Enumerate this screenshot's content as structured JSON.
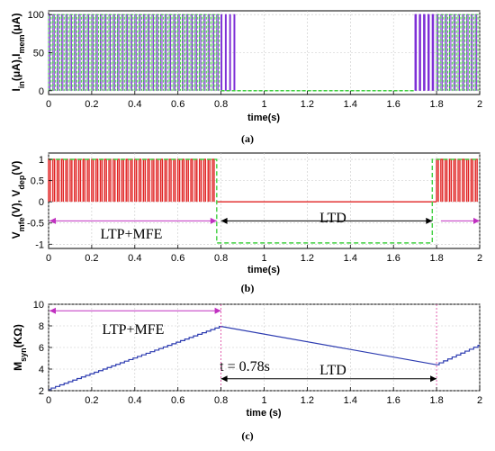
{
  "colors": {
    "input": "#7e2fd6",
    "membrane": "#3fcf3f",
    "mfe": "#e02020",
    "dep": "#3fcf3f",
    "syn": "#2c3bb0",
    "ltp_arrow": "#c030c0",
    "ltd_arrow": "#000000",
    "marker": "#e040a0"
  },
  "chart_data": [
    {
      "type": "line",
      "caption": "(a)",
      "ylabel_main": "I",
      "ylabel_sub1": "in",
      "ylabel_mid": "(μA),I",
      "ylabel_sub2": "mem",
      "ylabel_end": "(μA)",
      "xlabel": "time(s)",
      "xlim": [
        0,
        2
      ],
      "ylim": [
        -5,
        105
      ],
      "xticks": [
        0,
        0.2,
        0.4,
        0.6,
        0.8,
        1,
        1.2,
        1.4,
        1.6,
        1.8,
        2
      ],
      "xtick_labels": [
        "0",
        "0.2",
        "0.4",
        "0.6",
        "0.8",
        "1",
        "1.2",
        "1.4",
        "1.6",
        "1.8",
        "2"
      ],
      "yticks": [
        0,
        50,
        100
      ],
      "ytick_labels": [
        "0",
        "50",
        "100"
      ],
      "grid": true,
      "series": [
        {
          "kind": "pulses",
          "ranges": [
            [
              0,
              0.8
            ],
            [
              1.7,
              2.0
            ]
          ],
          "period": 0.02,
          "width": 0.006,
          "high": 100,
          "low": 0
        },
        {
          "kind": "pulses-dashed",
          "ranges": [
            [
              0,
              0.8
            ],
            [
              1.8,
              2.0
            ]
          ],
          "period": 0.02,
          "width": 0.012,
          "high": 100,
          "low": 0
        },
        {
          "kind": "tail",
          "ranges": [
            [
              0.8,
              0.88
            ],
            [
              1.7,
              1.8
            ]
          ],
          "period": 0.02,
          "high": 100,
          "low": 0
        }
      ]
    },
    {
      "type": "line",
      "caption": "(b)",
      "ylabel_main": "V",
      "ylabel_sub1": "mfe",
      "ylabel_mid": "(V), V",
      "ylabel_sub2": "dep",
      "ylabel_end": "(V)",
      "xlabel": "time(s)",
      "xlim": [
        0,
        2
      ],
      "ylim": [
        -1.1,
        1.15
      ],
      "xticks": [
        0,
        0.2,
        0.4,
        0.6,
        0.8,
        1,
        1.2,
        1.4,
        1.6,
        1.8,
        2
      ],
      "xtick_labels": [
        "0",
        "0.2",
        "0.4",
        "0.6",
        "0.8",
        "1",
        "1.2",
        "1.4",
        "1.6",
        "1.8",
        "2"
      ],
      "yticks": [
        -1,
        -0.5,
        0,
        0.5,
        1
      ],
      "ytick_labels": [
        "-1",
        "-0.5",
        "0",
        "0.5",
        "1"
      ],
      "grid": true,
      "series": [
        {
          "kind": "pulses",
          "ranges": [
            [
              0,
              0.78
            ],
            [
              1.8,
              2.0
            ]
          ],
          "period": 0.02,
          "width": 0.008,
          "high": 1,
          "low": 0
        },
        {
          "kind": "dep",
          "points": [
            [
              0,
              1
            ],
            [
              0.78,
              1
            ],
            [
              0.78,
              -0.97
            ],
            [
              1.78,
              -0.97
            ],
            [
              1.78,
              1
            ],
            [
              2.0,
              1
            ]
          ]
        }
      ],
      "annotations": {
        "ltp_label": "LTP+MFE",
        "ltd_label": "LTD",
        "ltp_arrow": [
          0,
          0.78
        ],
        "ltd_arrow": [
          0.8,
          1.78
        ],
        "right_arrow": [
          1.82,
          2.0
        ],
        "arrow_y": -0.45
      }
    },
    {
      "type": "line",
      "caption": "(c)",
      "ylabel_main": "M",
      "ylabel_sub1": "syn",
      "ylabel_mid": "(KΩ)",
      "ylabel_sub2": "",
      "ylabel_end": "",
      "xlabel": "time (s)",
      "xlim": [
        0,
        2
      ],
      "ylim": [
        2,
        10
      ],
      "xticks": [
        0,
        0.2,
        0.4,
        0.6,
        0.8,
        1,
        1.2,
        1.4,
        1.6,
        1.8,
        2
      ],
      "xtick_labels": [
        "0",
        "0.2",
        "0.4",
        "0.6",
        "0.8",
        "1",
        "1.2",
        "1.4",
        "1.6",
        "1.8",
        "2"
      ],
      "yticks": [
        2,
        4,
        6,
        8,
        10
      ],
      "ytick_labels": [
        "2",
        "4",
        "6",
        "8",
        "10"
      ],
      "grid": true,
      "series": [
        {
          "kind": "staircase",
          "x0": 0,
          "x1": 0.8,
          "y0": 2.1,
          "y1": 7.95,
          "step": 0.02
        },
        {
          "kind": "line",
          "points": [
            [
              0.8,
              7.95
            ],
            [
              1.8,
              4.4
            ]
          ]
        },
        {
          "kind": "staircase",
          "x0": 1.8,
          "x1": 2.0,
          "y0": 4.4,
          "y1": 6.2,
          "step": 0.02
        }
      ],
      "annotations": {
        "ltp_label": "LTP+MFE",
        "ltd_label": "LTD",
        "t_label": "t = 0.78s",
        "ltp_arrow": [
          0,
          0.8
        ],
        "ltd_arrow": [
          0.8,
          1.8
        ],
        "ltp_arrow_y": 9.4,
        "ltd_arrow_y": 3.1,
        "markers": [
          0.8,
          1.8
        ]
      }
    }
  ]
}
